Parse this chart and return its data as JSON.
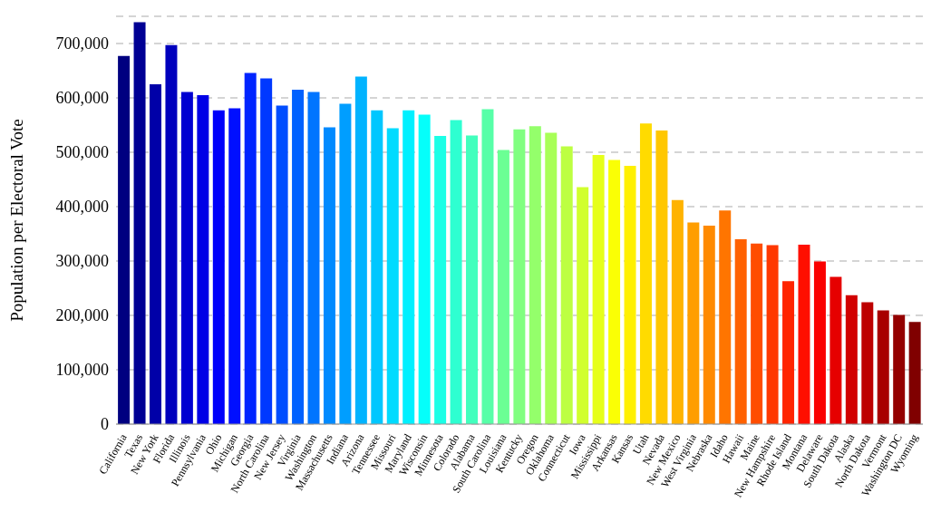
{
  "chart_data": {
    "type": "bar",
    "ylabel": "Population per Electoral Vote",
    "categories": [
      "California",
      "Texas",
      "New York",
      "Florida",
      "Illinois",
      "Pennsylvania",
      "Ohio",
      "Michigan",
      "Georgia",
      "North Carolina",
      "New Jersey",
      "Virginia",
      "Washington",
      "Massachusetts",
      "Indiana",
      "Arizona",
      "Tennessee",
      "Missouri",
      "Maryland",
      "Wisconsin",
      "Minnesota",
      "Colorado",
      "Alabama",
      "South Carolina",
      "Louisiana",
      "Kentucky",
      "Oregon",
      "Oklahoma",
      "Connecticut",
      "Iowa",
      "Mississippi",
      "Arkansas",
      "Kansas",
      "Utah",
      "Nevada",
      "New Mexico",
      "West Virginia",
      "Nebraska",
      "Idaho",
      "Hawaii",
      "Maine",
      "New Hampshire",
      "Rhode Island",
      "Montana",
      "Delaware",
      "South Dakota",
      "Alaska",
      "North Dakota",
      "Vermont",
      "Washington DC",
      "Wyoming"
    ],
    "values": [
      677000,
      739000,
      625000,
      697000,
      611000,
      605000,
      577000,
      581000,
      646000,
      636000,
      586000,
      615000,
      611000,
      546000,
      589000,
      639000,
      577000,
      544000,
      577000,
      569000,
      530000,
      559000,
      531000,
      579000,
      504000,
      542000,
      548000,
      536000,
      511000,
      436000,
      495000,
      486000,
      475000,
      553000,
      540000,
      412000,
      371000,
      365000,
      393000,
      340000,
      332000,
      329000,
      263000,
      330000,
      299000,
      271000,
      237000,
      224000,
      209000,
      201000,
      188000
    ],
    "colors": [
      "#000080",
      "#000094",
      "#0000a8",
      "#0000bd",
      "#0000d1",
      "#0000e6",
      "#0000fa",
      "#000fff",
      "#0024ff",
      "#0038ff",
      "#004dff",
      "#0061ff",
      "#0075ff",
      "#008aff",
      "#009eff",
      "#00b3ff",
      "#00c7ff",
      "#00dbff",
      "#00f0ff",
      "#05fffa",
      "#1affe6",
      "#2effd1",
      "#42ffbd",
      "#57ffa8",
      "#6bff94",
      "#80ff80",
      "#94ff6b",
      "#a8ff57",
      "#bdff42",
      "#d1ff2e",
      "#e6ff1a",
      "#faff05",
      "#fff000",
      "#ffdb00",
      "#ffc700",
      "#ffb300",
      "#ff9e00",
      "#ff8a00",
      "#ff7500",
      "#ff6100",
      "#ff4d00",
      "#ff3800",
      "#ff2400",
      "#ff0f00",
      "#fa0000",
      "#e60000",
      "#d10000",
      "#bd0000",
      "#a80000",
      "#940000",
      "#800000"
    ],
    "ylim": [
      0,
      750000
    ],
    "yticks": [
      0,
      {
        "value": 100000,
        "label": "100,000"
      },
      {
        "value": 200000,
        "label": "200,000"
      },
      {
        "value": 300000,
        "label": "300,000"
      },
      {
        "value": 400000,
        "label": "400,000"
      },
      {
        "value": 500000,
        "label": "500,000"
      },
      {
        "value": 600000,
        "label": "600,000"
      },
      {
        "value": 700000,
        "label": "700,000"
      }
    ],
    "grid": "y",
    "legend": false
  }
}
